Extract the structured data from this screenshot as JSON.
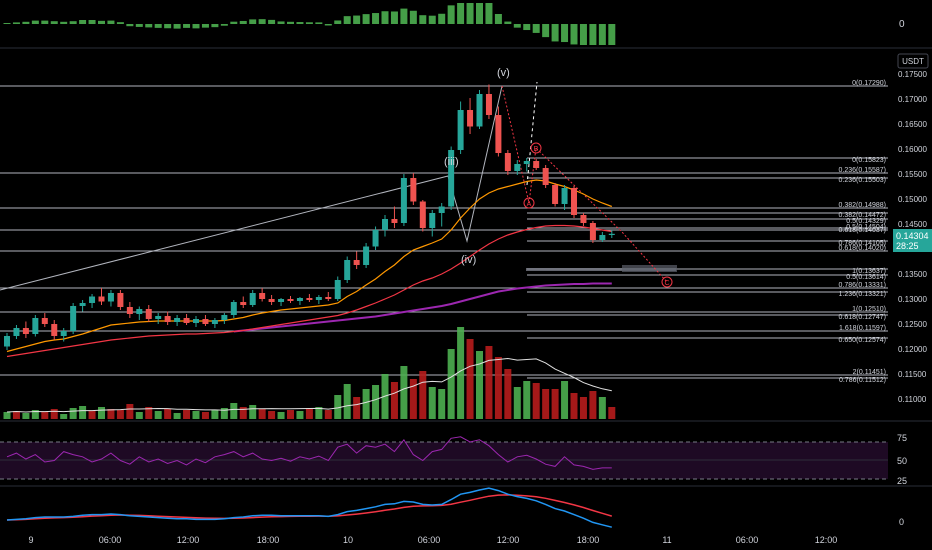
{
  "colors": {
    "background": "#000000",
    "up": "#26a69a",
    "down": "#ef5350",
    "vol_up": "#4caf50",
    "vol_down": "#b71c1c",
    "fib_line": "#b2b5be",
    "ema_orange": "#ff9800",
    "ema_red": "#f23645",
    "ema_purple": "#9c27b0",
    "rsi": "#9c27b0",
    "macd_line": "#2196f3",
    "signal_line": "#f23645",
    "grid_text": "#d1d4dc"
  },
  "header": {
    "currency_button": "USDT"
  },
  "top_indicator": {
    "zero_label": "0"
  },
  "price_axis": {
    "ticks": [
      "0.17500",
      "0.17000",
      "0.16500",
      "0.16000",
      "0.15500",
      "0.15000",
      "0.14500",
      "0.14000",
      "0.13500",
      "0.13000",
      "0.12500",
      "0.12000",
      "0.11500",
      "0.11000"
    ],
    "current_price": "0.14304",
    "countdown": "28:25"
  },
  "time_axis": {
    "labels": [
      "9",
      "06:00",
      "12:00",
      "18:00",
      "10",
      "06:00",
      "12:00",
      "18:00",
      "11",
      "06:00",
      "12:00"
    ]
  },
  "wave_labels": {
    "iii": "(iii)",
    "iv": "(iv)",
    "v": "(v)",
    "a": "A",
    "b": "B",
    "c": "C"
  },
  "fib_large": {
    "labels": [
      "0(0.17290)",
      "0.236(0.15587)",
      "0.382(0.14988)",
      "0.5(0.14504)",
      "0.618(0.14020)",
      "0.786(0.13331)",
      "1(0.12510)",
      "1.618(0.11597)",
      "2(0.11451)"
    ]
  },
  "fib_small": {
    "labels": [
      "0(0.15823)",
      "0.236(0.15503)",
      "0.382(0.14472)",
      "0.5(0.14329)",
      "0.618(0.14037)",
      "0.786(0.14105)",
      "1(0.13637)",
      "0.5(0.13614)",
      "1.236(0.13321)",
      "0.618(0.12747)",
      "0.650(0.12574)",
      "0.786(0.11512)"
    ]
  },
  "rsi": {
    "levels": [
      "75",
      "50",
      "25"
    ]
  },
  "macd": {
    "zero_label": "0"
  },
  "chart_data": {
    "type": "candlestick",
    "price_ticks": [
      0.175,
      0.17,
      0.165,
      0.16,
      0.155,
      0.15,
      0.145,
      0.14,
      0.135,
      0.13,
      0.125,
      0.12,
      0.115,
      0.11
    ],
    "current_price": 0.14304,
    "candles": [
      [
        0.1205,
        0.1232,
        0.1198,
        0.1226
      ],
      [
        0.1226,
        0.1248,
        0.122,
        0.1242
      ],
      [
        0.1242,
        0.1255,
        0.1222,
        0.123
      ],
      [
        0.123,
        0.1268,
        0.1225,
        0.1262
      ],
      [
        0.1262,
        0.1272,
        0.1244,
        0.125
      ],
      [
        0.125,
        0.1258,
        0.1218,
        0.1226
      ],
      [
        0.1226,
        0.1242,
        0.1215,
        0.1236
      ],
      [
        0.1236,
        0.1292,
        0.123,
        0.1286
      ],
      [
        0.1286,
        0.1298,
        0.1275,
        0.1292
      ],
      [
        0.1292,
        0.131,
        0.1282,
        0.1305
      ],
      [
        0.1305,
        0.1322,
        0.1288,
        0.1295
      ],
      [
        0.1295,
        0.1318,
        0.1285,
        0.1312
      ],
      [
        0.1312,
        0.1318,
        0.1278,
        0.1284
      ],
      [
        0.1284,
        0.1294,
        0.1262,
        0.127
      ],
      [
        0.127,
        0.1285,
        0.1258,
        0.128
      ],
      [
        0.128,
        0.1288,
        0.1254,
        0.126
      ],
      [
        0.126,
        0.1272,
        0.125,
        0.1266
      ],
      [
        0.1266,
        0.1275,
        0.1248,
        0.1254
      ],
      [
        0.1254,
        0.1268,
        0.1246,
        0.1262
      ],
      [
        0.1262,
        0.127,
        0.1248,
        0.1252
      ],
      [
        0.1252,
        0.1266,
        0.1244,
        0.126
      ],
      [
        0.126,
        0.1268,
        0.1246,
        0.125
      ],
      [
        0.125,
        0.1262,
        0.1242,
        0.1258
      ],
      [
        0.1258,
        0.1272,
        0.125,
        0.1268
      ],
      [
        0.1268,
        0.1298,
        0.1262,
        0.1294
      ],
      [
        0.1294,
        0.1305,
        0.1282,
        0.1288
      ],
      [
        0.1288,
        0.1318,
        0.1284,
        0.1312
      ],
      [
        0.1312,
        0.1322,
        0.1295,
        0.13
      ],
      [
        0.13,
        0.1308,
        0.1288,
        0.1294
      ],
      [
        0.1294,
        0.1302,
        0.1286,
        0.13
      ],
      [
        0.13,
        0.1306,
        0.1292,
        0.1296
      ],
      [
        0.1296,
        0.1304,
        0.1288,
        0.1302
      ],
      [
        0.1302,
        0.131,
        0.1294,
        0.1298
      ],
      [
        0.1298,
        0.1308,
        0.129,
        0.1304
      ],
      [
        0.1304,
        0.1314,
        0.1296,
        0.13
      ],
      [
        0.13,
        0.1345,
        0.1296,
        0.1338
      ],
      [
        0.1338,
        0.1385,
        0.1332,
        0.1378
      ],
      [
        0.1378,
        0.1395,
        0.136,
        0.1368
      ],
      [
        0.1368,
        0.1412,
        0.1362,
        0.1405
      ],
      [
        0.1405,
        0.1445,
        0.1398,
        0.1438
      ],
      [
        0.1438,
        0.1468,
        0.1425,
        0.146
      ],
      [
        0.146,
        0.1485,
        0.1442,
        0.1452
      ],
      [
        0.1452,
        0.155,
        0.1446,
        0.1542
      ],
      [
        0.1542,
        0.1552,
        0.1488,
        0.1495
      ],
      [
        0.1495,
        0.1498,
        0.1435,
        0.1442
      ],
      [
        0.1442,
        0.1478,
        0.1425,
        0.1472
      ],
      [
        0.1472,
        0.1492,
        0.1445,
        0.1485
      ],
      [
        0.1485,
        0.1605,
        0.1478,
        0.1598
      ],
      [
        0.1598,
        0.1695,
        0.159,
        0.1678
      ],
      [
        0.1678,
        0.1702,
        0.163,
        0.1645
      ],
      [
        0.1645,
        0.1718,
        0.164,
        0.171
      ],
      [
        0.171,
        0.1729,
        0.166,
        0.1668
      ],
      [
        0.1668,
        0.1685,
        0.1585,
        0.1592
      ],
      [
        0.1592,
        0.1598,
        0.1548,
        0.1556
      ],
      [
        0.1556,
        0.1578,
        0.1548,
        0.157
      ],
      [
        0.157,
        0.1582,
        0.1555,
        0.1576
      ],
      [
        0.1576,
        0.158,
        0.1558,
        0.1562
      ],
      [
        0.1562,
        0.1568,
        0.1522,
        0.1528
      ],
      [
        0.1528,
        0.1532,
        0.1485,
        0.149
      ],
      [
        0.149,
        0.1528,
        0.1478,
        0.1522
      ],
      [
        0.1522,
        0.1526,
        0.1462,
        0.1468
      ],
      [
        0.1468,
        0.1472,
        0.1446,
        0.1452
      ],
      [
        0.1452,
        0.1456,
        0.1412,
        0.1418
      ],
      [
        0.1418,
        0.1434,
        0.1414,
        0.1428
      ],
      [
        0.1428,
        0.1438,
        0.1422,
        0.14304
      ]
    ],
    "volume": [
      [
        7,
        1
      ],
      [
        8,
        0
      ],
      [
        6,
        1
      ],
      [
        9,
        1
      ],
      [
        7,
        0
      ],
      [
        10,
        0
      ],
      [
        5,
        1
      ],
      [
        11,
        1
      ],
      [
        13,
        1
      ],
      [
        8,
        0
      ],
      [
        12,
        1
      ],
      [
        10,
        0
      ],
      [
        9,
        0
      ],
      [
        15,
        0
      ],
      [
        7,
        1
      ],
      [
        12,
        0
      ],
      [
        8,
        1
      ],
      [
        10,
        0
      ],
      [
        6,
        1
      ],
      [
        9,
        0
      ],
      [
        8,
        1
      ],
      [
        7,
        0
      ],
      [
        9,
        1
      ],
      [
        11,
        1
      ],
      [
        16,
        1
      ],
      [
        12,
        0
      ],
      [
        14,
        1
      ],
      [
        10,
        0
      ],
      [
        8,
        0
      ],
      [
        7,
        1
      ],
      [
        9,
        0
      ],
      [
        8,
        1
      ],
      [
        10,
        0
      ],
      [
        12,
        1
      ],
      [
        9,
        0
      ],
      [
        24,
        1
      ],
      [
        35,
        1
      ],
      [
        22,
        0
      ],
      [
        30,
        1
      ],
      [
        34,
        1
      ],
      [
        45,
        1
      ],
      [
        37,
        0
      ],
      [
        53,
        1
      ],
      [
        40,
        0
      ],
      [
        48,
        0
      ],
      [
        32,
        1
      ],
      [
        30,
        1
      ],
      [
        70,
        1
      ],
      [
        92,
        1
      ],
      [
        80,
        0
      ],
      [
        68,
        1
      ],
      [
        73,
        0
      ],
      [
        62,
        0
      ],
      [
        50,
        0
      ],
      [
        32,
        1
      ],
      [
        38,
        1
      ],
      [
        36,
        0
      ],
      [
        30,
        0
      ],
      [
        30,
        0
      ],
      [
        38,
        1
      ],
      [
        26,
        0
      ],
      [
        22,
        0
      ],
      [
        28,
        0
      ],
      [
        22,
        1
      ],
      [
        12,
        0
      ]
    ],
    "ema_orange": [
      0.1195,
      0.12,
      0.1205,
      0.121,
      0.1215,
      0.1218,
      0.122,
      0.1225,
      0.123,
      0.1236,
      0.1242,
      0.1248,
      0.125,
      0.1252,
      0.1254,
      0.1255,
      0.1256,
      0.1256,
      0.1256,
      0.1256,
      0.1256,
      0.1256,
      0.1256,
      0.1257,
      0.126,
      0.1263,
      0.1268,
      0.1272,
      0.1275,
      0.1278,
      0.128,
      0.1282,
      0.1284,
      0.1286,
      0.1288,
      0.1292,
      0.1305,
      0.1315,
      0.1328,
      0.134,
      0.1355,
      0.1368,
      0.1385,
      0.1398,
      0.1405,
      0.1412,
      0.142,
      0.1438,
      0.1462,
      0.1482,
      0.15,
      0.1512,
      0.152,
      0.1525,
      0.153,
      0.1535,
      0.1538,
      0.1536,
      0.153,
      0.1525,
      0.1518,
      0.151,
      0.15,
      0.1492,
      0.1485
    ],
    "ema_red": [
      0.1185,
      0.1188,
      0.1191,
      0.1194,
      0.1197,
      0.12,
      0.1203,
      0.1206,
      0.1209,
      0.1212,
      0.1215,
      0.1218,
      0.122,
      0.1222,
      0.1224,
      0.1226,
      0.1227,
      0.1228,
      0.1229,
      0.123,
      0.123,
      0.1231,
      0.1232,
      0.1233,
      0.1235,
      0.1237,
      0.124,
      0.1243,
      0.1246,
      0.1249,
      0.1252,
      0.1255,
      0.1258,
      0.1261,
      0.1264,
      0.1267,
      0.1272,
      0.1278,
      0.1285,
      0.1292,
      0.13,
      0.1308,
      0.1318,
      0.1328,
      0.1336,
      0.1342,
      0.135,
      0.136,
      0.1372,
      0.1385,
      0.1398,
      0.141,
      0.142,
      0.1428,
      0.1434,
      0.1439,
      0.1443,
      0.1446,
      0.1447,
      0.1447,
      0.1446,
      0.1444,
      0.1441,
      0.1438,
      0.1435
    ],
    "ema_purple": [
      null,
      null,
      null,
      null,
      null,
      null,
      null,
      null,
      null,
      null,
      null,
      null,
      null,
      null,
      null,
      null,
      null,
      null,
      null,
      null,
      null,
      null,
      null,
      null,
      0.1235,
      0.1237,
      0.1239,
      0.1241,
      0.1243,
      0.1245,
      0.1247,
      0.1249,
      0.1251,
      0.1253,
      0.1255,
      0.1257,
      0.1259,
      0.1261,
      0.1263,
      0.1265,
      0.1268,
      0.1271,
      0.1274,
      0.1277,
      0.128,
      0.1283,
      0.1286,
      0.129,
      0.1295,
      0.13,
      0.1305,
      0.131,
      0.1315,
      0.1318,
      0.1321,
      0.1323,
      0.1325,
      0.1327,
      0.1328,
      0.1329,
      0.133,
      0.133,
      0.1331,
      0.1331,
      0.1331
    ],
    "rsi_values": [
      55,
      60,
      52,
      58,
      48,
      50,
      62,
      58,
      55,
      48,
      52,
      60,
      50,
      45,
      55,
      48,
      52,
      46,
      50,
      44,
      52,
      47,
      55,
      58,
      62,
      55,
      60,
      52,
      50,
      53,
      49,
      55,
      52,
      56,
      50,
      68,
      72,
      60,
      70,
      68,
      72,
      62,
      78,
      58,
      50,
      62,
      65,
      80,
      82,
      75,
      78,
      70,
      58,
      48,
      55,
      57,
      52,
      45,
      42,
      55,
      44,
      42,
      38,
      40,
      40
    ],
    "macd_line": [
      0,
      0.1,
      0.2,
      0.4,
      0.5,
      0.5,
      0.5,
      0.6,
      0.8,
      0.9,
      0.9,
      1.0,
      0.9,
      0.7,
      0.6,
      0.5,
      0.4,
      0.3,
      0.2,
      0.2,
      0.1,
      0.1,
      0.1,
      0.2,
      0.4,
      0.5,
      0.7,
      0.8,
      0.8,
      0.7,
      0.7,
      0.7,
      0.7,
      0.7,
      0.6,
      0.9,
      1.4,
      1.6,
      1.9,
      2.2,
      2.6,
      2.7,
      3.1,
      3.0,
      2.6,
      2.5,
      2.6,
      3.4,
      4.3,
      4.6,
      5.0,
      5.3,
      4.9,
      4.3,
      3.9,
      3.6,
      3.2,
      2.6,
      1.9,
      1.5,
      0.9,
      0.3,
      -0.4,
      -0.8,
      -1.2
    ],
    "signal_line": [
      0,
      0.05,
      0.1,
      0.2,
      0.3,
      0.35,
      0.4,
      0.45,
      0.55,
      0.65,
      0.72,
      0.8,
      0.83,
      0.8,
      0.76,
      0.7,
      0.64,
      0.57,
      0.5,
      0.44,
      0.38,
      0.32,
      0.28,
      0.26,
      0.29,
      0.33,
      0.4,
      0.48,
      0.54,
      0.57,
      0.6,
      0.62,
      0.64,
      0.65,
      0.64,
      0.69,
      0.83,
      0.98,
      1.16,
      1.37,
      1.62,
      1.84,
      2.1,
      2.28,
      2.35,
      2.39,
      2.43,
      2.63,
      2.96,
      3.29,
      3.63,
      3.96,
      4.15,
      4.18,
      4.12,
      4.02,
      3.86,
      3.61,
      3.27,
      2.92,
      2.52,
      2.08,
      1.58,
      1.11,
      0.65
    ]
  }
}
